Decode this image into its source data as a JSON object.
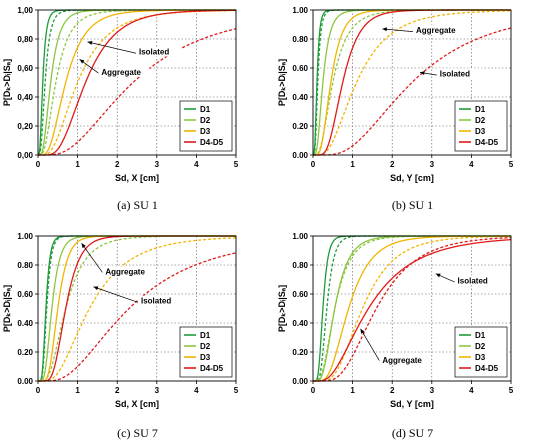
{
  "colors": {
    "D1": "#1f9b3a",
    "D2": "#8cc63f",
    "D3": "#f2b400",
    "D4": "#e01919"
  },
  "chart_data": [
    {
      "type": "line",
      "caption": "(a) SU 1",
      "xlabel": "Sd, X [cm]",
      "ylabel": "P[Dₖ>Dᵢ|Sₐ]",
      "xlim": [
        0,
        5
      ],
      "ylim": [
        0,
        1
      ],
      "xticks": [
        "0",
        "1",
        "2",
        "3",
        "4",
        "5"
      ],
      "yticks": [
        "0,00",
        "0,20",
        "0,40",
        "0,60",
        "0,80",
        "1,00"
      ],
      "legend_position": "bottom-right",
      "grid": true,
      "line_styles": {
        "Aggregate": "solid",
        "Isolated": "dashed"
      },
      "series": [
        {
          "name": "D1",
          "color": "#1f9b3a",
          "aggregate_median": 0.12,
          "aggregate_beta": 0.55,
          "isolated_median": 0.18,
          "isolated_beta": 0.55
        },
        {
          "name": "D2",
          "color": "#8cc63f",
          "aggregate_median": 0.32,
          "aggregate_beta": 0.55,
          "isolated_median": 0.45,
          "isolated_beta": 0.6
        },
        {
          "name": "D3",
          "color": "#f2b400",
          "aggregate_median": 0.7,
          "aggregate_beta": 0.55,
          "isolated_median": 1.0,
          "isolated_beta": 0.6
        },
        {
          "name": "D4-D5",
          "color": "#e01919",
          "aggregate_median": 1.2,
          "aggregate_beta": 0.5,
          "isolated_median": 2.4,
          "isolated_beta": 0.65
        }
      ],
      "annotations": [
        {
          "text": "Isolated",
          "x": 1.25,
          "y": 0.78,
          "lx": 2.5,
          "ly": 0.7
        },
        {
          "text": "Aggregate",
          "x": 1.05,
          "y": 0.66,
          "lx": 1.55,
          "ly": 0.56
        }
      ]
    },
    {
      "type": "line",
      "caption": "(b) SU 1",
      "xlabel": "Sd, Y [cm]",
      "ylabel": "P[Dₖ>Dᵢ|Sₐ]",
      "xlim": [
        0,
        5
      ],
      "ylim": [
        0,
        1
      ],
      "xticks": [
        "0",
        "1",
        "2",
        "3",
        "4",
        "5"
      ],
      "yticks": [
        "0.00",
        "0.20",
        "0.40",
        "0.60",
        "0.80",
        "1.00"
      ],
      "legend_position": "bottom-right",
      "grid": true,
      "line_styles": {
        "Aggregate": "solid",
        "Isolated": "dashed"
      },
      "series": [
        {
          "name": "D1",
          "color": "#1f9b3a",
          "aggregate_median": 0.1,
          "aggregate_beta": 0.5,
          "isolated_median": 0.12,
          "isolated_beta": 0.5
        },
        {
          "name": "D2",
          "color": "#8cc63f",
          "aggregate_median": 0.25,
          "aggregate_beta": 0.55,
          "isolated_median": 0.5,
          "isolated_beta": 0.6
        },
        {
          "name": "D3",
          "color": "#f2b400",
          "aggregate_median": 0.45,
          "aggregate_beta": 0.5,
          "isolated_median": 1.1,
          "isolated_beta": 0.6
        },
        {
          "name": "D4-D5",
          "color": "#e01919",
          "aggregate_median": 0.75,
          "aggregate_beta": 0.45,
          "isolated_median": 2.5,
          "isolated_beta": 0.6
        }
      ],
      "annotations": [
        {
          "text": "Aggregate",
          "x": 1.75,
          "y": 0.87,
          "lx": 2.55,
          "ly": 0.85
        },
        {
          "text": "Isolated",
          "x": 2.7,
          "y": 0.57,
          "lx": 3.15,
          "ly": 0.55
        }
      ]
    },
    {
      "type": "line",
      "caption": "(c) SU 7",
      "xlabel": "Sd, X [cm]",
      "ylabel": "P[Dₖ>Dᵢ|Sₐ]",
      "xlim": [
        0,
        5
      ],
      "ylim": [
        0,
        1
      ],
      "xticks": [
        "0",
        "1",
        "2",
        "3",
        "4",
        "5"
      ],
      "yticks": [
        "0.00",
        "0.20",
        "0.40",
        "0.60",
        "0.80",
        "1.00"
      ],
      "legend_position": "bottom-right",
      "grid": true,
      "line_styles": {
        "Aggregate": "solid",
        "Isolated": "dashed"
      },
      "series": [
        {
          "name": "D1",
          "color": "#1f9b3a",
          "aggregate_median": 0.2,
          "aggregate_beta": 0.4,
          "isolated_median": 0.22,
          "isolated_beta": 0.4
        },
        {
          "name": "D2",
          "color": "#8cc63f",
          "aggregate_median": 0.35,
          "aggregate_beta": 0.45,
          "isolated_median": 0.7,
          "isolated_beta": 0.55
        },
        {
          "name": "D3",
          "color": "#f2b400",
          "aggregate_median": 0.5,
          "aggregate_beta": 0.4,
          "isolated_median": 1.3,
          "isolated_beta": 0.6
        },
        {
          "name": "D4-D5",
          "color": "#e01919",
          "aggregate_median": 0.7,
          "aggregate_beta": 0.4,
          "isolated_median": 2.3,
          "isolated_beta": 0.65
        }
      ],
      "annotations": [
        {
          "text": "Aggregate",
          "x": 1.1,
          "y": 0.95,
          "lx": 1.65,
          "ly": 0.74
        },
        {
          "text": "Isolated",
          "x": 1.4,
          "y": 0.65,
          "lx": 2.55,
          "ly": 0.54
        }
      ]
    },
    {
      "type": "line",
      "caption": "(d) SU 7",
      "xlabel": "Sd, Y [cm]",
      "ylabel": "P[Dₖ>Dᵢ|Sₐ]",
      "xlim": [
        0,
        5
      ],
      "ylim": [
        0,
        1
      ],
      "xticks": [
        "0",
        "1",
        "2",
        "3",
        "4",
        "5"
      ],
      "yticks": [
        "0.00",
        "0.20",
        "0.40",
        "0.60",
        "0.80",
        "1.00"
      ],
      "legend_position": "bottom-right",
      "grid": true,
      "line_styles": {
        "Aggregate": "solid",
        "Isolated": "dashed"
      },
      "series": [
        {
          "name": "D1",
          "color": "#1f9b3a",
          "aggregate_median": 0.25,
          "aggregate_beta": 0.4,
          "isolated_median": 0.35,
          "isolated_beta": 0.4
        },
        {
          "name": "D2",
          "color": "#8cc63f",
          "aggregate_median": 0.55,
          "aggregate_beta": 0.5,
          "isolated_median": 0.55,
          "isolated_beta": 0.55
        },
        {
          "name": "D3",
          "color": "#f2b400",
          "aggregate_median": 0.9,
          "aggregate_beta": 0.5,
          "isolated_median": 1.25,
          "isolated_beta": 0.5
        },
        {
          "name": "D4-D5",
          "color": "#e01919",
          "aggregate_median": 1.4,
          "aggregate_beta": 0.65,
          "isolated_median": 1.6,
          "isolated_beta": 0.5
        }
      ],
      "annotations": [
        {
          "text": "Isolated",
          "x": 3.1,
          "y": 0.74,
          "lx": 3.6,
          "ly": 0.68
        },
        {
          "text": "Aggregate",
          "x": 1.2,
          "y": 0.36,
          "lx": 1.7,
          "ly": 0.13
        }
      ]
    }
  ]
}
